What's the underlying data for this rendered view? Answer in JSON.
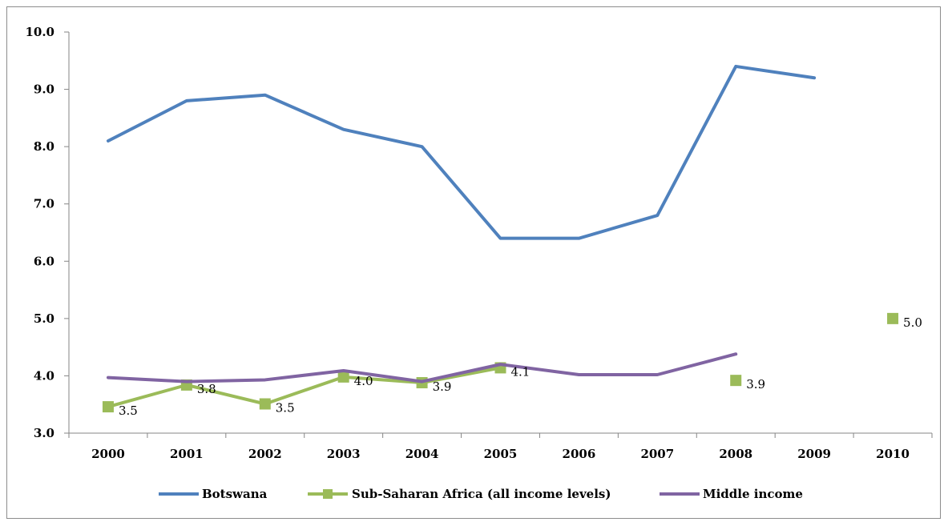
{
  "chart_data": {
    "type": "line",
    "categories": [
      "2000",
      "2001",
      "2002",
      "2003",
      "2004",
      "2005",
      "2006",
      "2007",
      "2008",
      "2009",
      "2010"
    ],
    "ylim": [
      3.0,
      10.0
    ],
    "yticks": [
      "3.0",
      "4.0",
      "5.0",
      "6.0",
      "7.0",
      "8.0",
      "9.0",
      "10.0"
    ],
    "grid": false,
    "legend_position": "bottom",
    "series": [
      {
        "name": "Botswana",
        "color": "#4f81bd",
        "marker": "none",
        "values": [
          8.1,
          8.8,
          8.9,
          8.3,
          8.0,
          6.4,
          6.4,
          6.8,
          9.4,
          9.2,
          null
        ]
      },
      {
        "name": "Sub-Saharan Africa (all income levels)",
        "color": "#9bbb59",
        "marker": "square",
        "values": [
          3.46,
          3.84,
          3.51,
          3.98,
          3.88,
          4.14,
          null,
          null,
          3.92,
          null,
          5.0
        ],
        "labels": [
          "3.5",
          "3.8",
          "3.5",
          "4.0",
          "3.9",
          "4.1",
          null,
          null,
          "3.9",
          null,
          "5.0"
        ]
      },
      {
        "name": "Middle income",
        "color": "#8064a2",
        "marker": "none",
        "values": [
          3.97,
          3.9,
          3.93,
          4.09,
          3.9,
          4.2,
          4.02,
          4.02,
          4.38,
          null,
          null
        ]
      }
    ]
  }
}
